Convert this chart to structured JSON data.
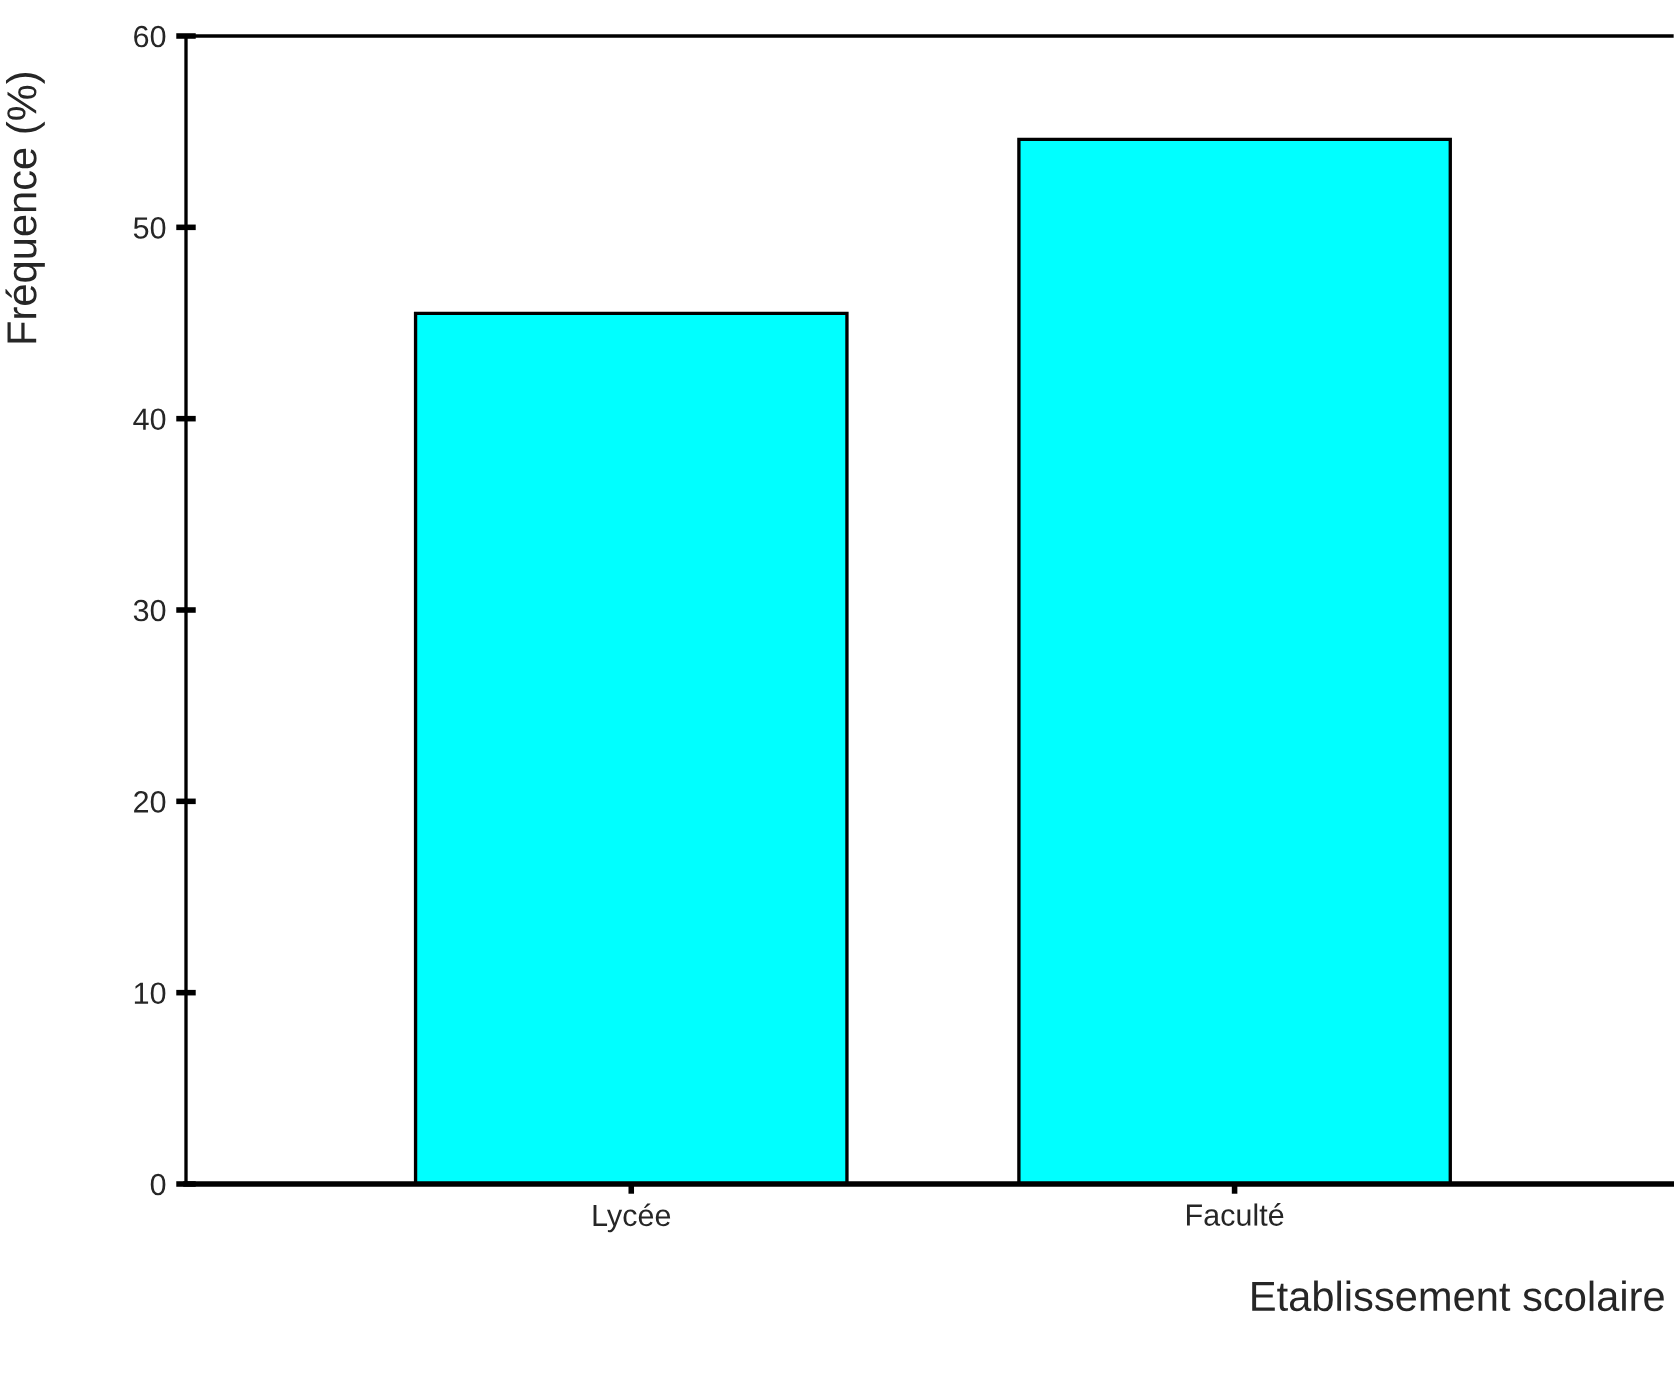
{
  "chart_data": {
    "type": "bar",
    "categories": [
      "Lycée",
      "Faculté"
    ],
    "values": [
      45.5,
      54.6
    ],
    "color": "#00ffff",
    "ylim": [
      0,
      60
    ],
    "yticks": [
      0,
      10,
      20,
      30,
      40,
      50,
      60
    ],
    "xlabel": "Etablissement scolaire",
    "ylabel": "Fréquence (%)",
    "grid": false,
    "legend": false
  }
}
